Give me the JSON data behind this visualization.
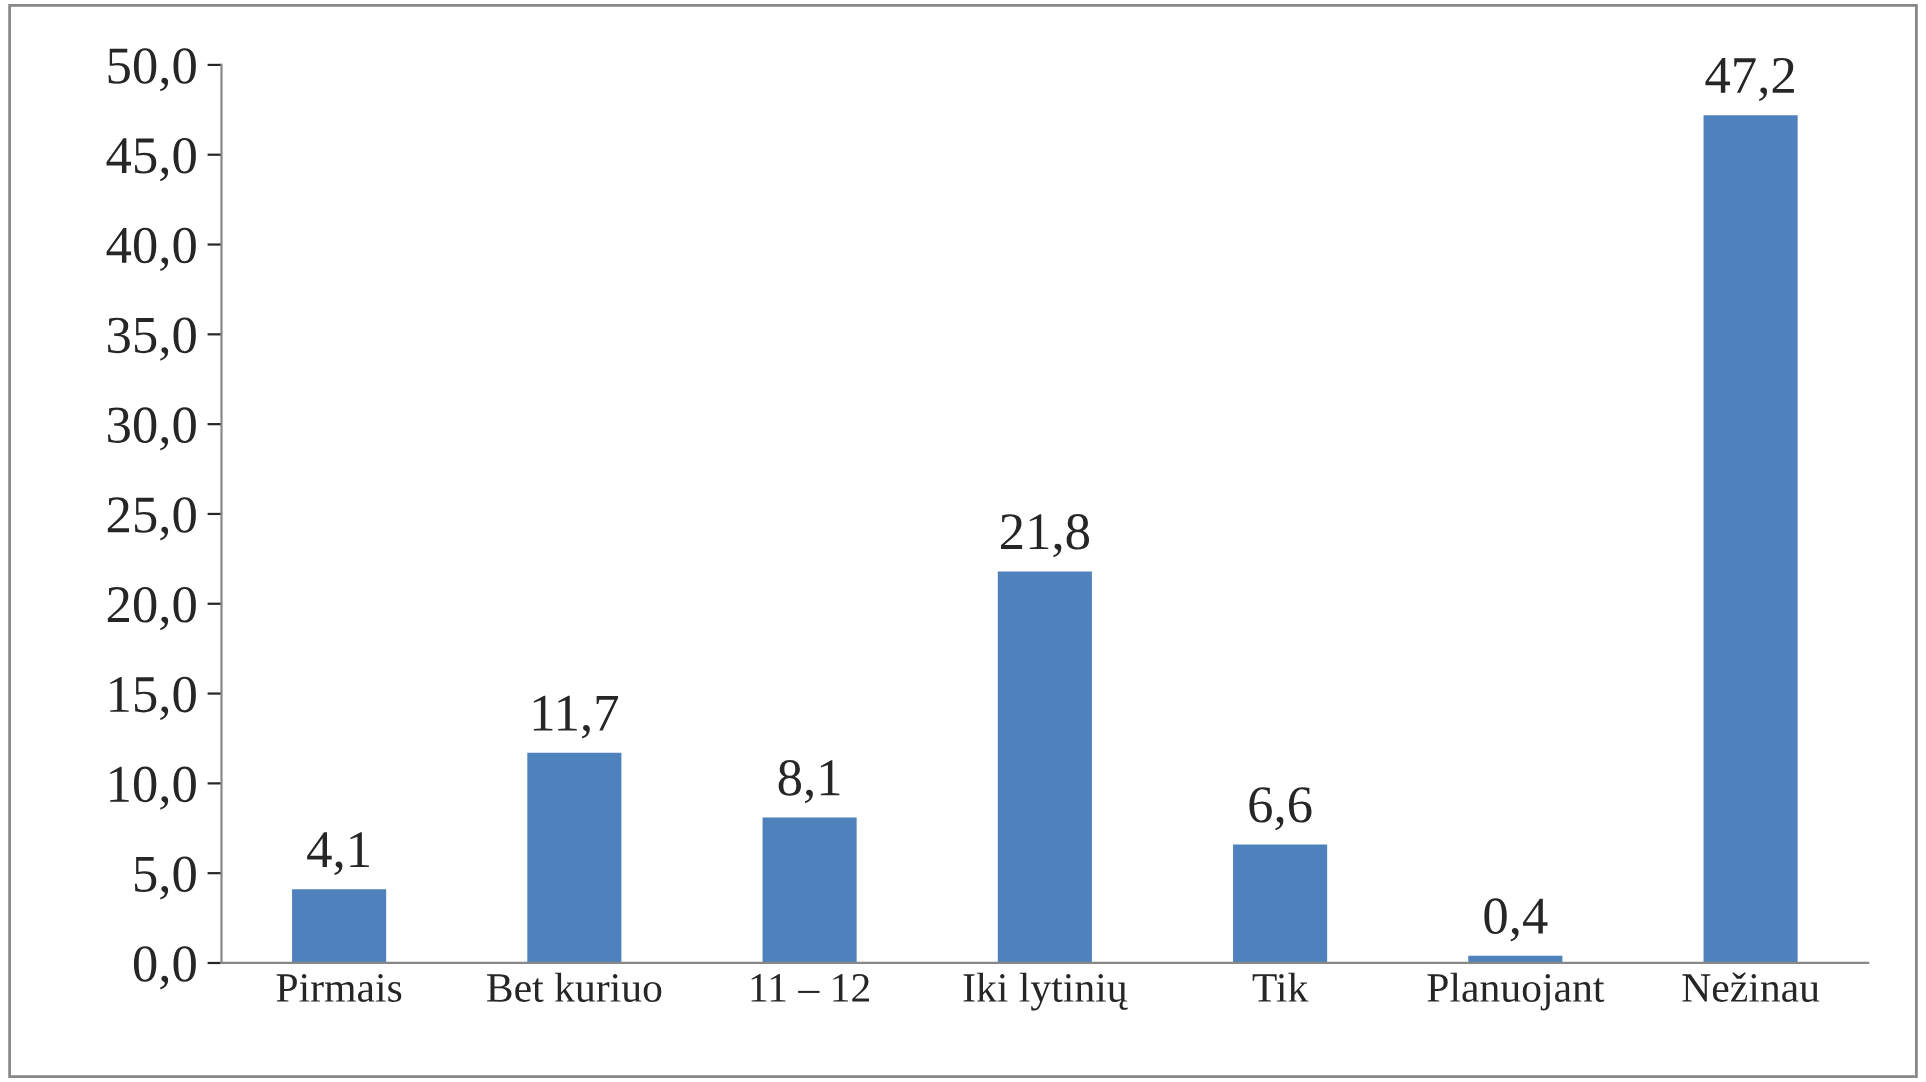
{
  "chart_data": {
    "type": "bar",
    "categories": [
      "Pirmais",
      "Bet kuriuo",
      "11 – 12",
      "Iki lytinių",
      "Tik",
      "Planuojant",
      "Nežinau"
    ],
    "values": [
      4.1,
      11.7,
      8.1,
      21.8,
      6.6,
      0.4,
      47.2
    ],
    "value_labels": [
      "4,1",
      "11,7",
      "8,1",
      "21,8",
      "6,6",
      "0,4",
      "47,2"
    ],
    "color": "#4f81bd",
    "ylim": [
      0,
      50
    ],
    "yticks": [
      {
        "value": 0,
        "label": "0,0"
      },
      {
        "value": 5,
        "label": "5,0"
      },
      {
        "value": 10,
        "label": "10,0"
      },
      {
        "value": 15,
        "label": "15,0"
      },
      {
        "value": 20,
        "label": "20,0"
      },
      {
        "value": 25,
        "label": "25,0"
      },
      {
        "value": 30,
        "label": "30,0"
      },
      {
        "value": 35,
        "label": "35,0"
      },
      {
        "value": 40,
        "label": "40,0"
      },
      {
        "value": 45,
        "label": "45,0"
      },
      {
        "value": 50,
        "label": "50,0"
      }
    ],
    "grid": false
  }
}
